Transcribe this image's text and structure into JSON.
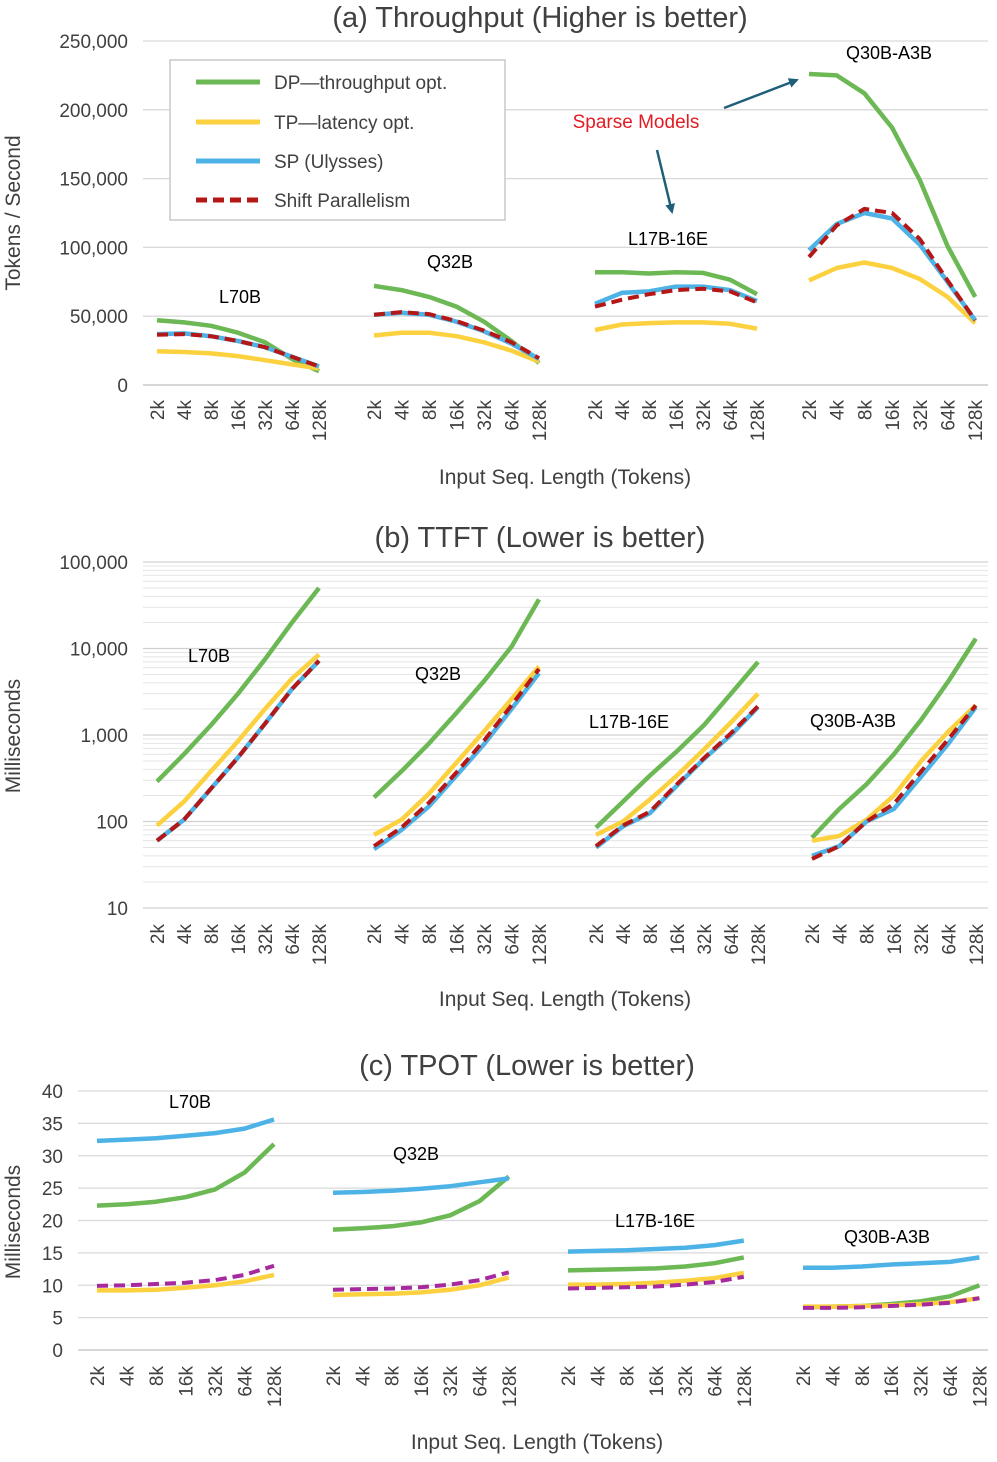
{
  "colors": {
    "dp": "#6bb854",
    "tp": "#fcd13f",
    "sp": "#4db3e6",
    "shift": "#b51616",
    "shift_tpot": "#a6299e",
    "grid": "#d9d9d9",
    "text": "#404040",
    "red_text": "#e31b23",
    "arrow": "#1f5f7a"
  },
  "legend": {
    "dp": "DP—throughput opt.",
    "tp": "TP—latency opt.",
    "sp": "SP (Ulysses)",
    "shift": "Shift Parallelism"
  },
  "annotations": {
    "sparse": "Sparse Models"
  },
  "chart_data": [
    {
      "id": "throughput",
      "type": "line",
      "title": "(a) Throughput (Higher is better)",
      "xlabel": "Input Seq. Length (Tokens)",
      "ylabel": "Tokens / Second",
      "yscale": "linear",
      "ylim": [
        0,
        250000
      ],
      "ytick_labels": [
        "0",
        "50,000",
        "100,000",
        "150,000",
        "200,000",
        "250,000"
      ],
      "categories": [
        "2k",
        "4k",
        "8k",
        "16k",
        "32k",
        "64k",
        "128k"
      ],
      "groups": [
        {
          "name": "L70B",
          "series": {
            "dp": [
              47000,
              45500,
              43000,
              38000,
              31000,
              19000,
              10000
            ],
            "tp": [
              24500,
              24000,
              23000,
              21000,
              18000,
              15000,
              12000
            ],
            "sp": [
              37000,
              37500,
              35500,
              32000,
              27500,
              20500,
              13500
            ],
            "shift": [
              36500,
              37000,
              35500,
              32000,
              27500,
              20500,
              13500
            ]
          }
        },
        {
          "name": "Q32B",
          "series": {
            "dp": [
              72000,
              69000,
              64000,
              57000,
              46000,
              32000,
              16000
            ],
            "tp": [
              36000,
              38000,
              38000,
              35500,
              31000,
              25000,
              17000
            ],
            "sp": [
              51000,
              52500,
              51000,
              46000,
              39000,
              30000,
              19000
            ],
            "shift": [
              51000,
              53000,
              51500,
              46500,
              39500,
              31000,
              19500
            ]
          }
        },
        {
          "name": "L17B-16E",
          "series": {
            "dp": [
              82000,
              82000,
              81000,
              82000,
              81500,
              76500,
              66000
            ],
            "tp": [
              40000,
              44000,
              45000,
              45500,
              45500,
              44500,
              41000
            ],
            "sp": [
              59000,
              67000,
              68000,
              71500,
              71500,
              69000,
              61000
            ],
            "shift": [
              57000,
              62000,
              66000,
              69000,
              70000,
              68000,
              60000
            ]
          }
        },
        {
          "name": "Q30B-A3B",
          "series": {
            "dp": [
              226000,
              225000,
              212000,
              187000,
              149000,
              101000,
              64000
            ],
            "tp": [
              76000,
              85000,
              89000,
              85000,
              77000,
              64000,
              45000
            ],
            "sp": [
              98000,
              117000,
              125000,
              121000,
              102000,
              75000,
              47000
            ],
            "shift": [
              93000,
              116000,
              128000,
              125000,
              106000,
              76000,
              47000
            ]
          }
        }
      ]
    },
    {
      "id": "ttft",
      "type": "line",
      "title": "(b) TTFT (Lower is better)",
      "xlabel": "Input Seq. Length (Tokens)",
      "ylabel": "Milliseconds",
      "yscale": "log",
      "ylim": [
        10,
        100000
      ],
      "ytick_labels": [
        "10",
        "100",
        "1,000",
        "10,000",
        "100,000"
      ],
      "categories": [
        "2k",
        "4k",
        "8k",
        "16k",
        "32k",
        "64k",
        "128k"
      ],
      "groups": [
        {
          "name": "L70B",
          "series": {
            "dp": [
              290,
              600,
              1300,
              3000,
              7500,
              20000,
              50000
            ],
            "tp": [
              90,
              170,
              380,
              850,
              2000,
              4500,
              8500
            ],
            "sp": [
              60,
              105,
              240,
              550,
              1350,
              3400,
              7200
            ],
            "shift": [
              60,
              105,
              240,
              550,
              1350,
              3400,
              7200
            ]
          }
        },
        {
          "name": "Q32B",
          "series": {
            "dp": [
              190,
              380,
              800,
              1800,
              4200,
              10500,
              37000
            ],
            "tp": [
              70,
              105,
              210,
              480,
              1100,
              2600,
              6200
            ],
            "sp": [
              48,
              80,
              150,
              340,
              780,
              2000,
              5200
            ],
            "shift": [
              52,
              85,
              165,
              370,
              860,
              2200,
              5800
            ]
          }
        },
        {
          "name": "L17B-16E",
          "series": {
            "dp": [
              85,
              170,
              340,
              650,
              1300,
              3000,
              7000
            ],
            "tp": [
              70,
              100,
              180,
              340,
              680,
              1400,
              3000
            ],
            "sp": [
              50,
              88,
              125,
              260,
              530,
              1000,
              2100
            ],
            "shift": [
              52,
              90,
              130,
              270,
              540,
              1050,
              2150
            ]
          }
        },
        {
          "name": "Q30B-A3B",
          "series": {
            "dp": [
              65,
              140,
              270,
              600,
              1500,
              4200,
              13000
            ],
            "tp": [
              60,
              68,
              105,
              200,
              500,
              1100,
              2200
            ],
            "sp": [
              40,
              52,
              100,
              140,
              330,
              800,
              2100
            ],
            "shift": [
              37,
              52,
              100,
              160,
              380,
              900,
              2200
            ]
          }
        }
      ]
    },
    {
      "id": "tpot",
      "type": "line",
      "title": "(c) TPOT (Lower is better)",
      "xlabel": "Input Seq. Length (Tokens)",
      "ylabel": "Milliseconds",
      "yscale": "linear",
      "ylim": [
        0,
        40
      ],
      "ytick_labels": [
        "0",
        "5",
        "10",
        "15",
        "20",
        "25",
        "30",
        "35",
        "40"
      ],
      "categories": [
        "2k",
        "4k",
        "8k",
        "16k",
        "32k",
        "64k",
        "128k"
      ],
      "groups": [
        {
          "name": "L70B",
          "series": {
            "dp": [
              22.3,
              22.5,
              22.9,
              23.6,
              24.8,
              27.4,
              31.8
            ],
            "tp": [
              9.2,
              9.2,
              9.3,
              9.6,
              10.0,
              10.6,
              11.6
            ],
            "sp": [
              32.3,
              32.5,
              32.7,
              33.1,
              33.5,
              34.2,
              35.6
            ],
            "shift": [
              9.9,
              10.0,
              10.2,
              10.4,
              10.8,
              11.6,
              13.0
            ]
          }
        },
        {
          "name": "Q32B",
          "series": {
            "dp": [
              18.6,
              18.8,
              19.1,
              19.7,
              20.8,
              23.0,
              26.8
            ],
            "tp": [
              8.5,
              8.6,
              8.7,
              8.9,
              9.3,
              10.0,
              11.2
            ],
            "sp": [
              24.3,
              24.4,
              24.6,
              24.9,
              25.3,
              25.9,
              26.5
            ],
            "shift": [
              9.3,
              9.4,
              9.5,
              9.7,
              10.1,
              10.8,
              12.0
            ]
          }
        },
        {
          "name": "L17B-16E",
          "series": {
            "dp": [
              12.3,
              12.4,
              12.5,
              12.6,
              12.9,
              13.4,
              14.3
            ],
            "tp": [
              10.1,
              10.1,
              10.2,
              10.4,
              10.7,
              11.1,
              11.9
            ],
            "sp": [
              15.2,
              15.3,
              15.4,
              15.6,
              15.8,
              16.2,
              16.9
            ],
            "shift": [
              9.5,
              9.6,
              9.7,
              9.8,
              10.1,
              10.5,
              11.3
            ]
          }
        },
        {
          "name": "Q30B-A3B",
          "series": {
            "dp": [
              6.6,
              6.7,
              6.8,
              7.1,
              7.5,
              8.3,
              10.0
            ],
            "tp": [
              6.7,
              6.7,
              6.8,
              6.9,
              7.1,
              7.4,
              8.0
            ],
            "sp": [
              12.7,
              12.7,
              12.9,
              13.2,
              13.4,
              13.6,
              14.3
            ],
            "shift": [
              6.5,
              6.5,
              6.6,
              6.8,
              7.0,
              7.3,
              8.0
            ]
          }
        }
      ]
    }
  ]
}
